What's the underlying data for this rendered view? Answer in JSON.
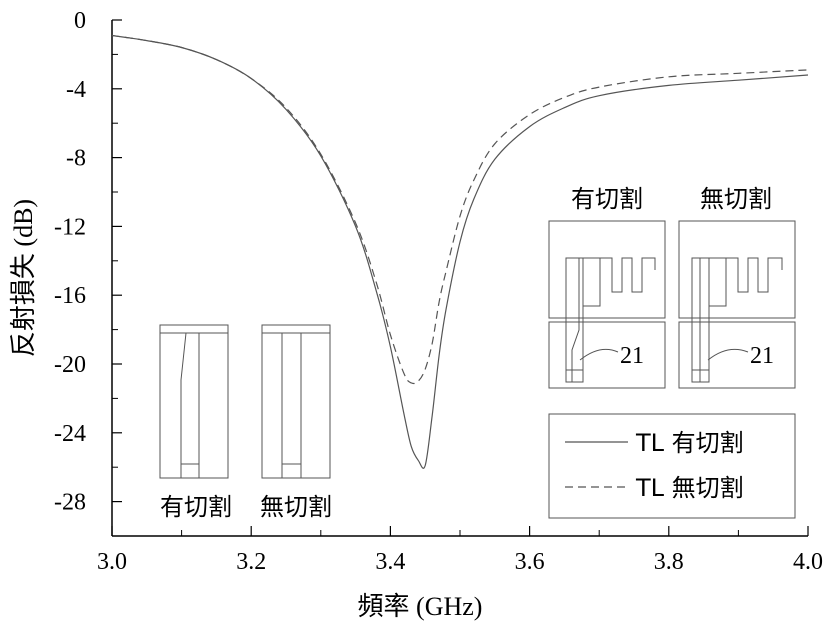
{
  "chart_data": {
    "type": "line",
    "xlabel": "頻率 (GHz)",
    "ylabel": "反射損失 (dB)",
    "xlim": [
      3.0,
      4.0
    ],
    "ylim": [
      -30,
      0
    ],
    "x_ticks": [
      3.0,
      3.2,
      3.4,
      3.6,
      3.8,
      4.0
    ],
    "x_tick_labels": [
      "3.0",
      "3.2",
      "3.4",
      "3.6",
      "3.8",
      "4.0"
    ],
    "y_ticks": [
      0,
      -4,
      -8,
      -12,
      -16,
      -20,
      -24,
      -28
    ],
    "y_tick_labels": [
      "0",
      "-4",
      "-8",
      "-12",
      "-16",
      "-20",
      "-24",
      "-28"
    ],
    "grid": false,
    "legend_position": "bottom-right",
    "series": [
      {
        "name": "TL 有切割",
        "style": "solid",
        "x": [
          3.0,
          3.05,
          3.1,
          3.15,
          3.2,
          3.25,
          3.3,
          3.35,
          3.38,
          3.4,
          3.42,
          3.43,
          3.44,
          3.45,
          3.46,
          3.47,
          3.48,
          3.5,
          3.52,
          3.55,
          3.6,
          3.65,
          3.7,
          3.8,
          3.9,
          4.0
        ],
        "y": [
          -0.9,
          -1.2,
          -1.6,
          -2.3,
          -3.4,
          -5.2,
          -7.9,
          -12.0,
          -15.8,
          -19.0,
          -23.0,
          -24.8,
          -25.6,
          -25.9,
          -23.0,
          -19.5,
          -16.8,
          -12.9,
          -10.4,
          -8.1,
          -6.2,
          -5.1,
          -4.4,
          -3.8,
          -3.5,
          -3.2
        ]
      },
      {
        "name": "TL 無切割",
        "style": "dashed",
        "x": [
          3.0,
          3.05,
          3.1,
          3.15,
          3.2,
          3.25,
          3.3,
          3.35,
          3.38,
          3.4,
          3.42,
          3.43,
          3.44,
          3.45,
          3.46,
          3.47,
          3.48,
          3.5,
          3.52,
          3.55,
          3.6,
          3.65,
          3.7,
          3.8,
          3.9,
          4.0
        ],
        "y": [
          -0.9,
          -1.2,
          -1.6,
          -2.3,
          -3.4,
          -5.1,
          -7.8,
          -11.8,
          -15.3,
          -18.3,
          -20.6,
          -21.1,
          -21.0,
          -20.3,
          -18.8,
          -16.4,
          -14.6,
          -11.4,
          -9.3,
          -7.2,
          -5.5,
          -4.5,
          -3.9,
          -3.3,
          -3.1,
          -2.9
        ]
      }
    ]
  },
  "insets": {
    "left_a_label": "有切割",
    "left_b_label": "無切割",
    "right_a_label": "有切割",
    "right_b_label": "無切割",
    "port_a_label": "21",
    "port_b_label": "21"
  }
}
